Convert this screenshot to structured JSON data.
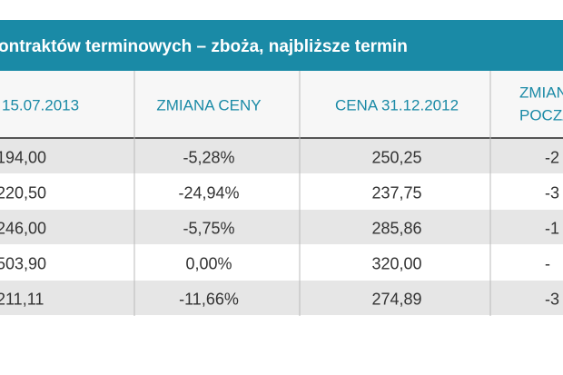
{
  "table": {
    "title": "ontraktów terminowych –  zboża, najbliższe termin",
    "header": [
      "15.07.2013",
      "ZMIANA CENY",
      "CENA 31.12.2012",
      [
        "ZMIAN",
        "POCZA"
      ]
    ],
    "rows": [
      [
        "194,00",
        "-5,28%",
        "250,25",
        "-2"
      ],
      [
        "220,50",
        "-24,94%",
        "237,75",
        "-3"
      ],
      [
        "246,00",
        "-5,75%",
        "285,86",
        "-1"
      ],
      [
        "503,90",
        "0,00%",
        "320,00",
        "-"
      ],
      [
        "211,11",
        "-11,66%",
        "274,89",
        "-3"
      ]
    ]
  }
}
